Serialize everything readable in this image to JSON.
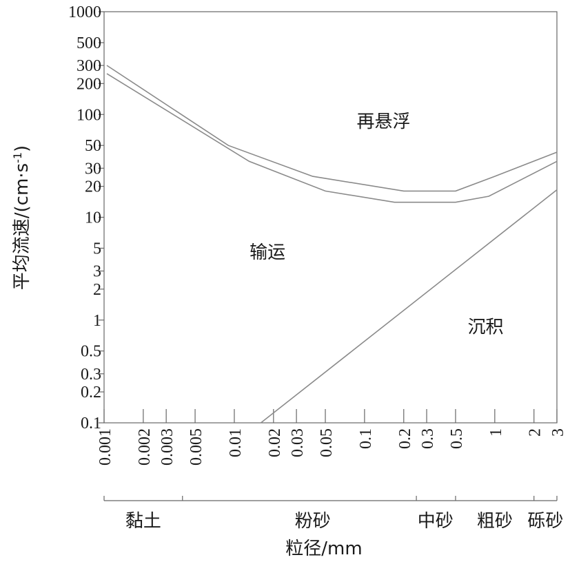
{
  "chart_data": {
    "type": "line",
    "xscale": "log",
    "yscale": "log",
    "xlabel": "粒径/mm",
    "ylabel": "平均流速/(cm·s",
    "ylabel_sup": "-1",
    "ylabel_close": ")",
    "xlim": [
      0.001,
      3
    ],
    "ylim": [
      0.1,
      1000
    ],
    "x_ticks": [
      {
        "value": 0.001,
        "label": "0.001"
      },
      {
        "value": 0.002,
        "label": "0.002"
      },
      {
        "value": 0.003,
        "label": "0.003"
      },
      {
        "value": 0.005,
        "label": "0.005"
      },
      {
        "value": 0.01,
        "label": "0.01"
      },
      {
        "value": 0.02,
        "label": "0.02"
      },
      {
        "value": 0.03,
        "label": "0.03"
      },
      {
        "value": 0.05,
        "label": "0.05"
      },
      {
        "value": 0.1,
        "label": "0.1"
      },
      {
        "value": 0.2,
        "label": "0.2"
      },
      {
        "value": 0.3,
        "label": "0.3"
      },
      {
        "value": 0.5,
        "label": "0.5"
      },
      {
        "value": 1,
        "label": "1"
      },
      {
        "value": 2,
        "label": "2"
      },
      {
        "value": 3,
        "label": "3"
      }
    ],
    "y_ticks": [
      {
        "value": 0.1,
        "label": "0.1"
      },
      {
        "value": 0.2,
        "label": "0.2"
      },
      {
        "value": 0.3,
        "label": "0.3"
      },
      {
        "value": 0.5,
        "label": "0.5"
      },
      {
        "value": 1,
        "label": "1"
      },
      {
        "value": 2,
        "label": "2"
      },
      {
        "value": 3,
        "label": "3"
      },
      {
        "value": 5,
        "label": "5"
      },
      {
        "value": 10,
        "label": "10"
      },
      {
        "value": 20,
        "label": "20"
      },
      {
        "value": 30,
        "label": "30"
      },
      {
        "value": 50,
        "label": "50"
      },
      {
        "value": 100,
        "label": "100"
      },
      {
        "value": 200,
        "label": "200"
      },
      {
        "value": 300,
        "label": "300"
      },
      {
        "value": 500,
        "label": "500"
      },
      {
        "value": 1000,
        "label": "1000"
      }
    ],
    "series": [
      {
        "color": "#8a8a8a",
        "points": [
          [
            0.00105,
            300
          ],
          [
            0.009,
            50
          ],
          [
            0.04,
            25
          ],
          [
            0.2,
            18
          ],
          [
            0.5,
            18
          ],
          [
            1,
            25
          ],
          [
            3,
            43
          ]
        ]
      },
      {
        "color": "#8a8a8a",
        "points": [
          [
            0.00105,
            250
          ],
          [
            0.013,
            35
          ],
          [
            0.05,
            18
          ],
          [
            0.17,
            14
          ],
          [
            0.5,
            14
          ],
          [
            0.9,
            16
          ],
          [
            3,
            35
          ]
        ]
      },
      {
        "color": "#8a8a8a",
        "points": [
          [
            0.016,
            0.1
          ],
          [
            3,
            18.5
          ]
        ]
      }
    ],
    "annotations": [
      {
        "text": "再悬浮",
        "x": 0.14,
        "y": 75
      },
      {
        "text": "输运",
        "x": 0.018,
        "y": 4
      },
      {
        "text": "沉积",
        "x": 0.85,
        "y": 0.75
      }
    ],
    "grain_classes": [
      {
        "label": "黏土",
        "from": 0.001,
        "to": 0.004
      },
      {
        "label": "粉砂",
        "from": 0.004,
        "to": 0.25
      },
      {
        "label": "中砂",
        "from": 0.25,
        "to": 0.5
      },
      {
        "label": "粗砂",
        "from": 0.5,
        "to": 2
      },
      {
        "label": "砾砂",
        "from": 2,
        "to": 3
      }
    ]
  }
}
